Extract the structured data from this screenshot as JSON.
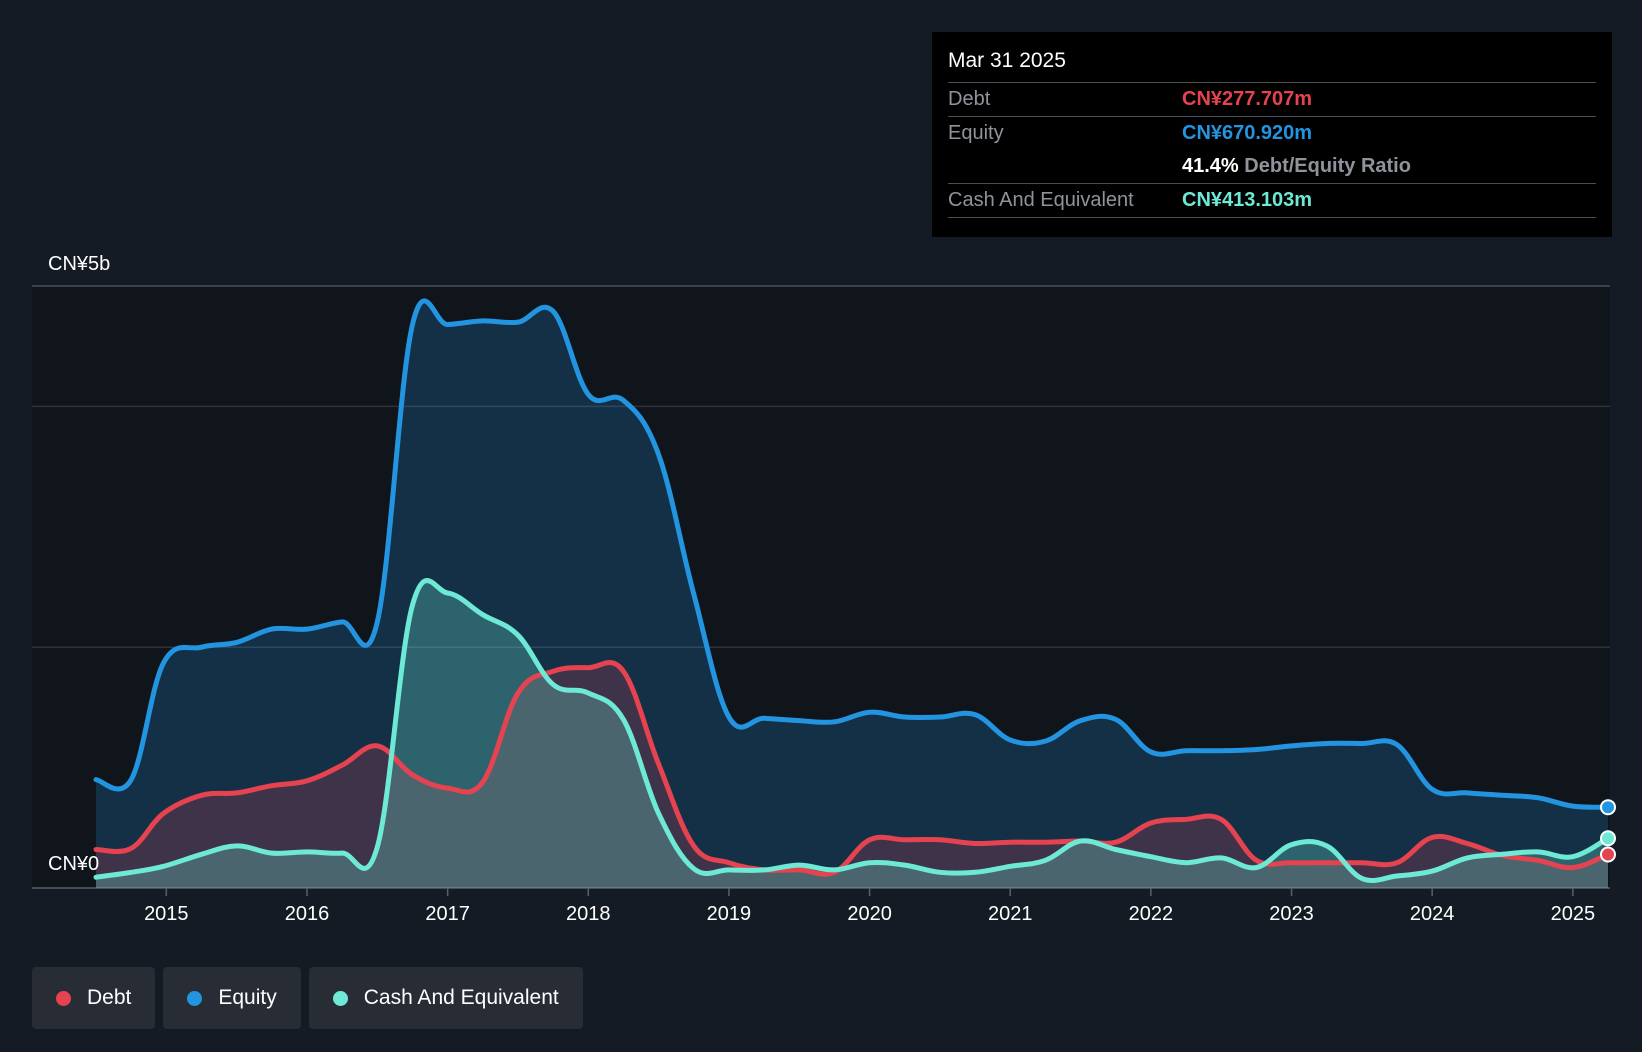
{
  "chart_data": {
    "type": "area",
    "y_axis": {
      "top_label": "CN¥5b",
      "bottom_label": "CN¥0",
      "ylim": [
        0,
        5000
      ]
    },
    "x_ticks": [
      "2015",
      "2016",
      "2017",
      "2018",
      "2019",
      "2020",
      "2021",
      "2022",
      "2023",
      "2024",
      "2025"
    ],
    "xlim": [
      2014.5,
      2025.25
    ],
    "grid": true,
    "legend_position": "bottom-left",
    "series": [
      {
        "name": "Equity",
        "color": "#2394e0",
        "x": [
          2014.5,
          2014.75,
          2014.98,
          2015.25,
          2015.5,
          2015.75,
          2016.0,
          2016.25,
          2016.5,
          2016.75,
          2017.0,
          2017.25,
          2017.5,
          2017.75,
          2018.0,
          2018.25,
          2018.5,
          2018.75,
          2019.0,
          2019.25,
          2019.5,
          2019.75,
          2020.0,
          2020.25,
          2020.5,
          2020.75,
          2021.0,
          2021.25,
          2021.5,
          2021.75,
          2022.0,
          2022.25,
          2022.5,
          2022.75,
          2023.0,
          2023.25,
          2023.5,
          2023.75,
          2024.0,
          2024.25,
          2024.5,
          2024.75,
          2025.0,
          2025.25
        ],
        "values": [
          900,
          900,
          1870,
          2000,
          2040,
          2150,
          2150,
          2210,
          2210,
          4680,
          4680,
          4710,
          4700,
          4790,
          4100,
          4050,
          3600,
          2440,
          1420,
          1410,
          1390,
          1380,
          1460,
          1420,
          1420,
          1440,
          1230,
          1220,
          1390,
          1400,
          1130,
          1140,
          1140,
          1150,
          1180,
          1200,
          1200,
          1190,
          820,
          790,
          770,
          750,
          680,
          671
        ]
      },
      {
        "name": "Debt",
        "color": "#e5434f",
        "x": [
          2014.5,
          2014.75,
          2014.98,
          2015.25,
          2015.5,
          2015.75,
          2016.0,
          2016.25,
          2016.5,
          2016.75,
          2017.0,
          2017.25,
          2017.5,
          2017.75,
          2018.0,
          2018.25,
          2018.5,
          2018.75,
          2019.0,
          2019.25,
          2019.5,
          2019.75,
          2020.0,
          2020.25,
          2020.5,
          2020.75,
          2021.0,
          2021.25,
          2021.5,
          2021.75,
          2022.0,
          2022.25,
          2022.5,
          2022.75,
          2023.0,
          2023.25,
          2023.5,
          2023.75,
          2024.0,
          2024.25,
          2024.5,
          2024.75,
          2025.0,
          2025.25
        ],
        "values": [
          320,
          330,
          620,
          770,
          790,
          850,
          890,
          1020,
          1180,
          940,
          830,
          880,
          1620,
          1800,
          1830,
          1800,
          1030,
          350,
          210,
          150,
          150,
          130,
          400,
          400,
          400,
          370,
          380,
          380,
          390,
          380,
          540,
          570,
          570,
          230,
          210,
          210,
          210,
          210,
          420,
          370,
          270,
          230,
          170,
          278
        ]
      },
      {
        "name": "Cash And Equivalent",
        "color": "#6ee9d5",
        "x": [
          2014.5,
          2014.75,
          2014.98,
          2015.25,
          2015.5,
          2015.75,
          2016.0,
          2016.25,
          2016.5,
          2016.75,
          2017.0,
          2017.25,
          2017.5,
          2017.75,
          2018.0,
          2018.25,
          2018.5,
          2018.75,
          2019.0,
          2019.25,
          2019.5,
          2019.75,
          2020.0,
          2020.25,
          2020.5,
          2020.75,
          2021.0,
          2021.25,
          2021.5,
          2021.75,
          2022.0,
          2022.25,
          2022.5,
          2022.75,
          2023.0,
          2023.25,
          2023.5,
          2023.75,
          2024.0,
          2024.25,
          2024.5,
          2024.75,
          2025.0,
          2025.25
        ],
        "values": [
          90,
          130,
          180,
          280,
          350,
          290,
          300,
          290,
          340,
          2350,
          2450,
          2270,
          2100,
          1690,
          1620,
          1400,
          620,
          160,
          150,
          150,
          190,
          150,
          210,
          190,
          130,
          130,
          180,
          230,
          390,
          320,
          260,
          210,
          250,
          170,
          360,
          350,
          80,
          100,
          140,
          250,
          280,
          300,
          260,
          413
        ]
      }
    ]
  },
  "tooltip": {
    "date": "Mar 31 2025",
    "rows": [
      {
        "label": "Debt",
        "value": "CN¥277.707m"
      },
      {
        "label": "Equity",
        "value": "CN¥670.920m"
      },
      {
        "ratio_value": "41.4%",
        "ratio_label": "Debt/Equity Ratio"
      },
      {
        "label": "Cash And Equivalent",
        "value": "CN¥413.103m"
      }
    ]
  },
  "legend": {
    "items": [
      {
        "label": "Debt",
        "color": "#e5434f"
      },
      {
        "label": "Equity",
        "color": "#2394e0"
      },
      {
        "label": "Cash And Equivalent",
        "color": "#6ee9d5"
      }
    ]
  }
}
